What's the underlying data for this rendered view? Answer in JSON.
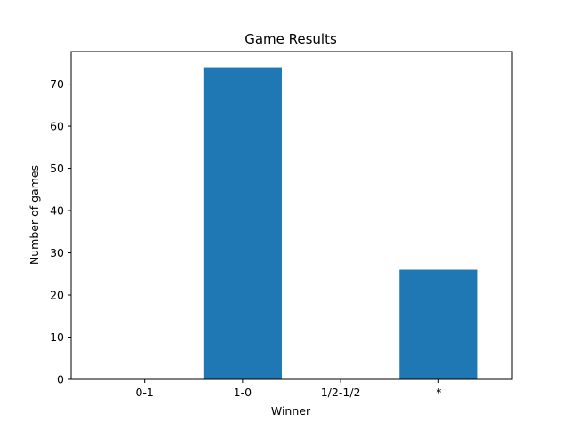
{
  "chart_data": {
    "type": "bar",
    "title": "Game Results",
    "xlabel": "Winner",
    "ylabel": "Number of games",
    "categories": [
      "0-1",
      "1-0",
      "1/2-1/2",
      "*"
    ],
    "values": [
      0,
      74,
      0,
      26
    ],
    "ylim": [
      0,
      77.7
    ],
    "yticks": [
      0,
      10,
      20,
      30,
      40,
      50,
      60,
      70
    ],
    "grid": false,
    "legend": "none",
    "colors": {
      "bar": "#1f77b4",
      "axes": "#000000",
      "background": "#ffffff"
    }
  }
}
